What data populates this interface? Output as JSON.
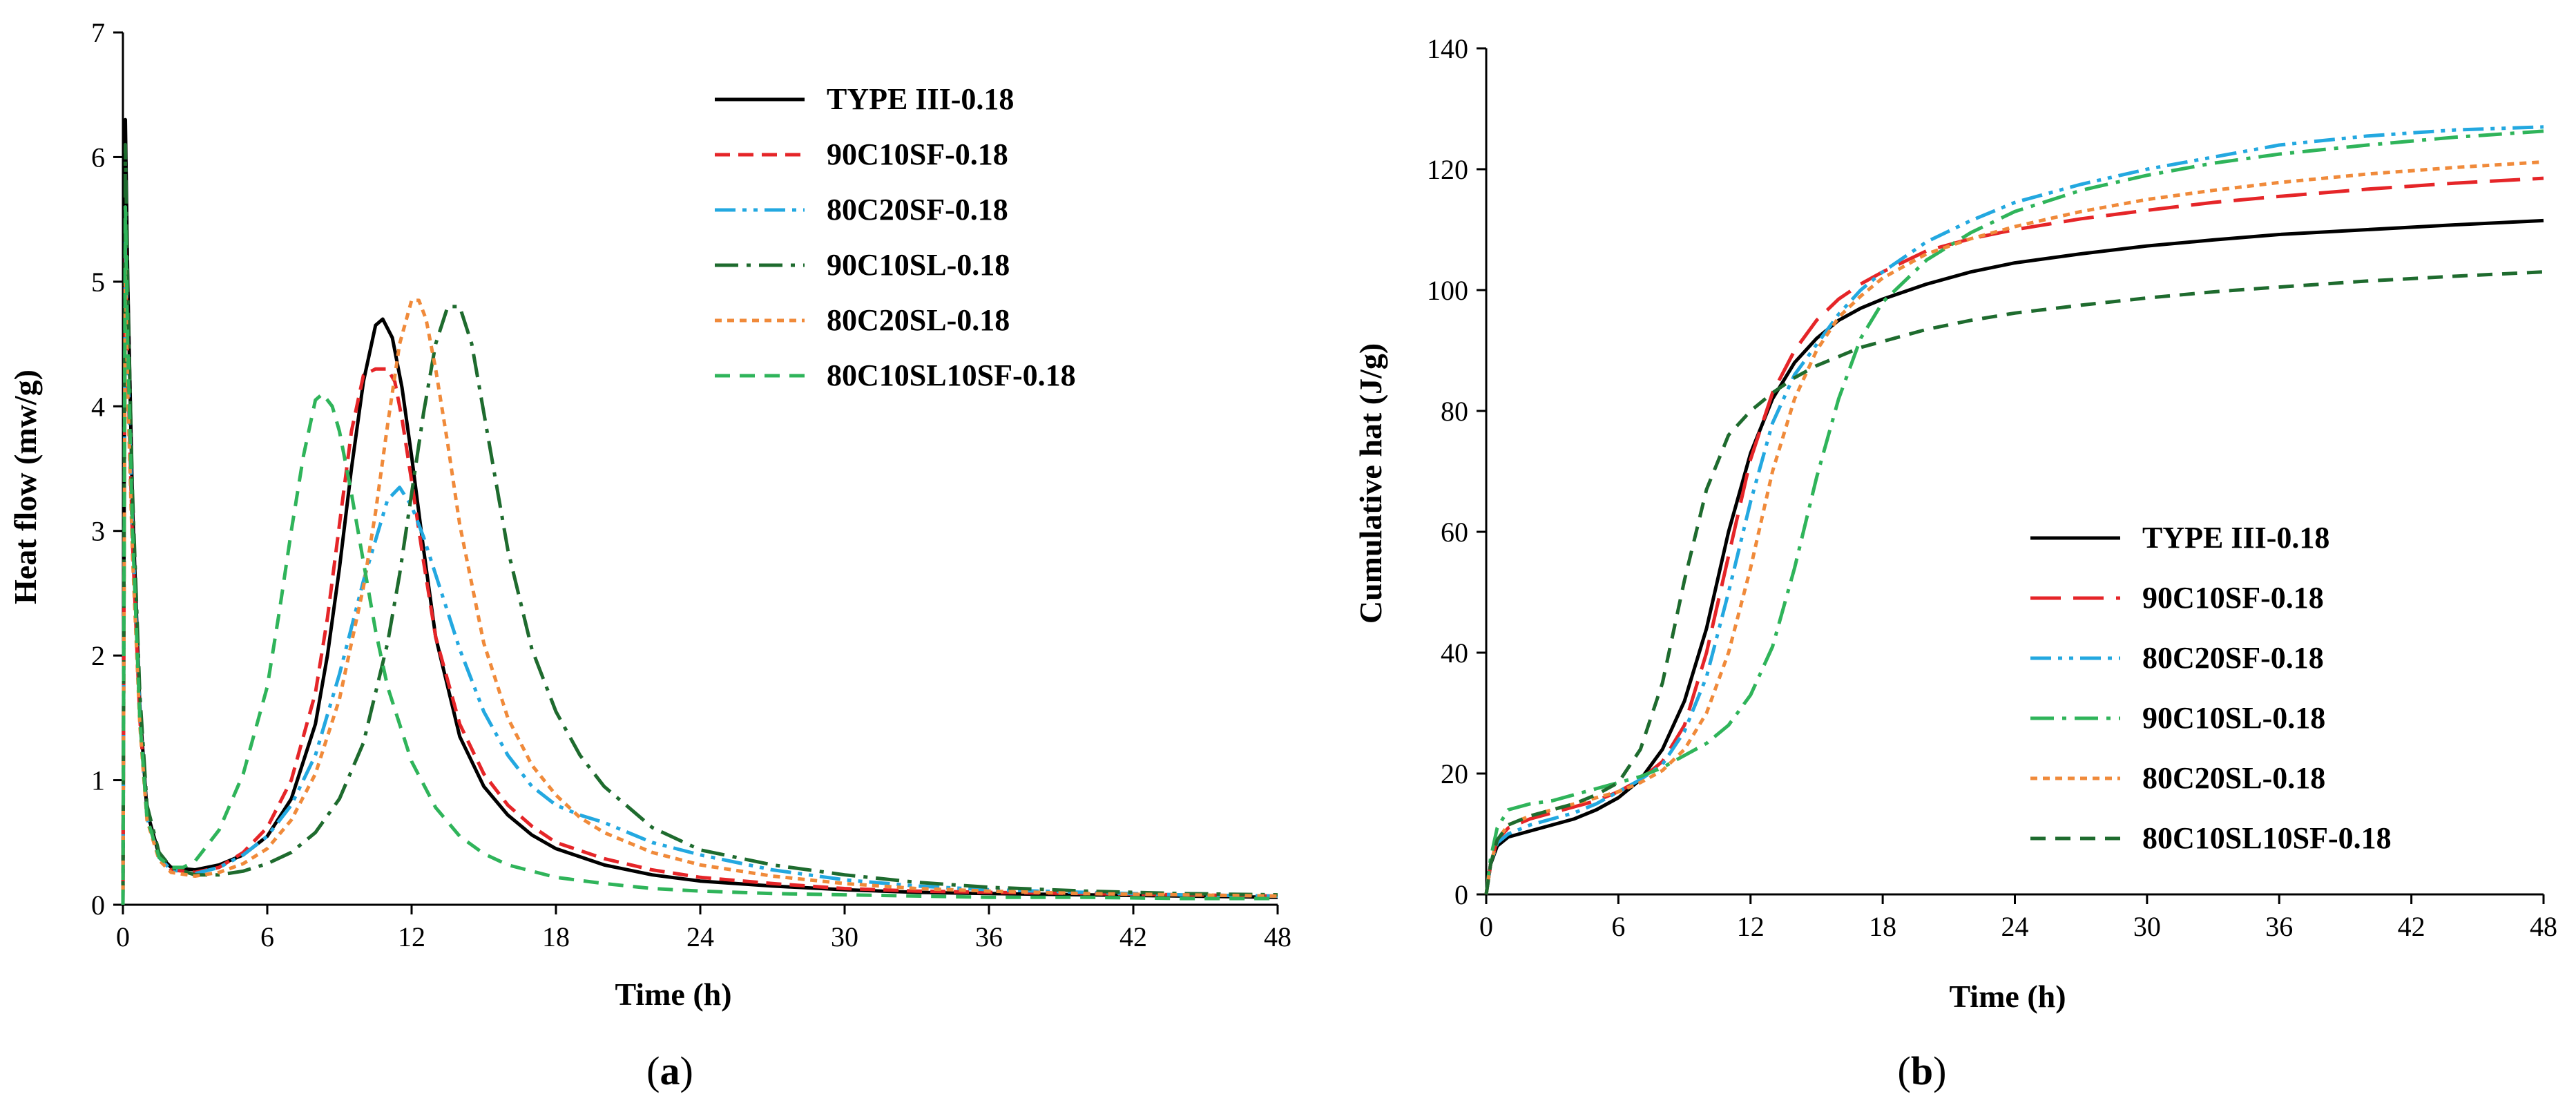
{
  "chart_data": [
    {
      "type": "line",
      "panel_label": {
        "open": "(",
        "letter": "a",
        "close": ")"
      },
      "xlabel": "Time (h)",
      "ylabel": "Heat flow (mw/g)",
      "xlim": [
        0,
        48
      ],
      "ylim": [
        0,
        7
      ],
      "xticks": [
        "0",
        "6",
        "12",
        "18",
        "24",
        "30",
        "36",
        "42",
        "48"
      ],
      "yticks": [
        "0",
        "1",
        "2",
        "3",
        "4",
        "5",
        "6",
        "7"
      ],
      "legend_position": "top-right",
      "series": [
        {
          "name": "TYPE III-0.18",
          "color": "#000000",
          "dash": "solid",
          "x": [
            0,
            0.1,
            0.2,
            0.4,
            0.7,
            1.0,
            1.5,
            2.0,
            3.0,
            4.0,
            5.0,
            6.0,
            7.0,
            8.0,
            8.5,
            9.0,
            9.5,
            10.0,
            10.5,
            10.8,
            11.2,
            11.6,
            12.0,
            12.5,
            13.0,
            14.0,
            15.0,
            16.0,
            17.0,
            18.0,
            20.0,
            22.0,
            24.0,
            27.0,
            30.0,
            33.0,
            36.0,
            40.0,
            44.0,
            48.0
          ],
          "y": [
            0,
            6.3,
            5.0,
            3.2,
            1.6,
            0.75,
            0.4,
            0.3,
            0.28,
            0.32,
            0.4,
            0.55,
            0.85,
            1.45,
            2.0,
            2.7,
            3.5,
            4.2,
            4.65,
            4.7,
            4.55,
            4.15,
            3.6,
            2.85,
            2.15,
            1.35,
            0.95,
            0.72,
            0.56,
            0.45,
            0.32,
            0.24,
            0.19,
            0.15,
            0.12,
            0.1,
            0.09,
            0.08,
            0.07,
            0.06
          ]
        },
        {
          "name": "90C10SF-0.18",
          "color": "#e52528",
          "dash": "short",
          "x": [
            0,
            0.1,
            0.2,
            0.4,
            0.7,
            1.0,
            1.5,
            2.0,
            3.0,
            4.0,
            5.0,
            6.0,
            7.0,
            8.0,
            8.5,
            9.0,
            9.5,
            10.0,
            10.5,
            11.0,
            11.3,
            11.6,
            12.0,
            12.5,
            13.0,
            14.0,
            15.0,
            16.0,
            17.0,
            18.0,
            20.0,
            22.0,
            24.0,
            27.0,
            30.0,
            33.0,
            36.0,
            40.0,
            44.0,
            48.0
          ],
          "y": [
            0,
            5.3,
            4.3,
            2.9,
            1.5,
            0.7,
            0.38,
            0.28,
            0.26,
            0.3,
            0.42,
            0.62,
            1.0,
            1.7,
            2.3,
            3.05,
            3.8,
            4.25,
            4.3,
            4.3,
            4.2,
            3.9,
            3.4,
            2.75,
            2.15,
            1.45,
            1.05,
            0.8,
            0.63,
            0.5,
            0.37,
            0.28,
            0.22,
            0.17,
            0.13,
            0.11,
            0.1,
            0.09,
            0.08,
            0.07
          ]
        },
        {
          "name": "80C20SF-0.18",
          "color": "#23a8e0",
          "dash": "dashdotdot",
          "x": [
            0,
            0.1,
            0.2,
            0.4,
            0.7,
            1.0,
            1.5,
            2.0,
            3.0,
            4.0,
            5.0,
            6.0,
            7.0,
            8.0,
            9.0,
            10.0,
            11.0,
            11.5,
            12.0,
            12.5,
            13.0,
            14.0,
            15.0,
            16.0,
            17.0,
            18.0,
            19.0,
            20.0,
            22.0,
            24.0,
            27.0,
            30.0,
            33.0,
            36.0,
            40.0,
            44.0,
            48.0
          ],
          "y": [
            0,
            5.4,
            4.4,
            3.0,
            1.55,
            0.7,
            0.38,
            0.28,
            0.25,
            0.3,
            0.4,
            0.55,
            0.8,
            1.2,
            1.85,
            2.6,
            3.25,
            3.35,
            3.2,
            2.95,
            2.65,
            2.05,
            1.55,
            1.2,
            0.95,
            0.8,
            0.72,
            0.66,
            0.5,
            0.4,
            0.28,
            0.2,
            0.15,
            0.12,
            0.1,
            0.08,
            0.07
          ]
        },
        {
          "name": "90C10SL-0.18",
          "color": "#1e6b2e",
          "dash": "dashdot",
          "x": [
            0,
            0.1,
            0.2,
            0.4,
            0.7,
            1.0,
            1.5,
            2.0,
            3.0,
            4.0,
            5.0,
            6.0,
            7.0,
            8.0,
            9.0,
            10.0,
            11.0,
            11.5,
            12.0,
            12.5,
            13.0,
            13.5,
            14.0,
            14.5,
            15.0,
            16.0,
            17.0,
            18.0,
            19.0,
            20.0,
            22.0,
            24.0,
            27.0,
            30.0,
            33.0,
            36.0,
            40.0,
            44.0,
            48.0
          ],
          "y": [
            0,
            6.1,
            4.9,
            3.3,
            1.7,
            0.8,
            0.42,
            0.3,
            0.24,
            0.24,
            0.27,
            0.33,
            0.42,
            0.58,
            0.85,
            1.3,
            2.1,
            2.65,
            3.3,
            3.95,
            4.5,
            4.8,
            4.8,
            4.5,
            3.95,
            2.85,
            2.05,
            1.55,
            1.2,
            0.95,
            0.62,
            0.44,
            0.32,
            0.24,
            0.18,
            0.14,
            0.11,
            0.09,
            0.08
          ]
        },
        {
          "name": "80C20SL-0.18",
          "color": "#f08a3a",
          "dash": "dotted",
          "x": [
            0,
            0.1,
            0.2,
            0.4,
            0.7,
            1.0,
            1.5,
            2.0,
            3.0,
            4.0,
            5.0,
            6.0,
            7.0,
            8.0,
            9.0,
            10.0,
            10.5,
            11.0,
            11.5,
            12.0,
            12.3,
            12.6,
            13.0,
            13.5,
            14.0,
            15.0,
            16.0,
            17.0,
            18.0,
            19.0,
            20.0,
            22.0,
            24.0,
            27.0,
            30.0,
            33.0,
            36.0,
            40.0,
            44.0,
            48.0
          ],
          "y": [
            0,
            5.1,
            4.1,
            2.8,
            1.45,
            0.68,
            0.36,
            0.26,
            0.23,
            0.26,
            0.33,
            0.45,
            0.68,
            1.05,
            1.65,
            2.55,
            3.15,
            3.85,
            4.5,
            4.85,
            4.85,
            4.7,
            4.3,
            3.7,
            3.05,
            2.1,
            1.5,
            1.12,
            0.88,
            0.7,
            0.58,
            0.42,
            0.32,
            0.23,
            0.17,
            0.13,
            0.11,
            0.09,
            0.08,
            0.07
          ]
        },
        {
          "name": "80C10SL10SF-0.18",
          "color": "#2fb45a",
          "dash": "dashed",
          "x": [
            0,
            0.1,
            0.2,
            0.4,
            0.7,
            1.0,
            1.5,
            2.0,
            2.5,
            3.0,
            4.0,
            5.0,
            6.0,
            6.5,
            7.0,
            7.5,
            8.0,
            8.3,
            8.7,
            9.0,
            9.5,
            10.0,
            10.5,
            11.0,
            12.0,
            13.0,
            14.0,
            15.0,
            16.0,
            18.0,
            20.0,
            22.0,
            24.0,
            27.0,
            30.0,
            33.0,
            36.0,
            40.0,
            44.0,
            48.0
          ],
          "y": [
            0,
            5.6,
            4.5,
            3.0,
            1.5,
            0.7,
            0.38,
            0.3,
            0.3,
            0.35,
            0.6,
            1.05,
            1.75,
            2.35,
            3.0,
            3.6,
            4.05,
            4.1,
            4.0,
            3.8,
            3.3,
            2.75,
            2.2,
            1.75,
            1.15,
            0.78,
            0.55,
            0.41,
            0.32,
            0.22,
            0.17,
            0.13,
            0.11,
            0.09,
            0.08,
            0.07,
            0.06,
            0.06,
            0.05,
            0.05
          ]
        }
      ]
    },
    {
      "type": "line",
      "panel_label": {
        "open": "(",
        "letter": "b",
        "close": ")"
      },
      "xlabel": "Time (h)",
      "ylabel": "Cumulative hat (J/g)",
      "xlim": [
        0,
        48
      ],
      "ylim": [
        0,
        140
      ],
      "xticks": [
        "0",
        "6",
        "12",
        "18",
        "24",
        "30",
        "36",
        "42",
        "48"
      ],
      "yticks": [
        "0",
        "20",
        "40",
        "60",
        "80",
        "100",
        "120",
        "140"
      ],
      "legend_position": "bottom-right",
      "series": [
        {
          "name": "TYPE III-0.18",
          "color": "#000000",
          "dash": "solid",
          "x": [
            0,
            0.2,
            0.5,
            1.0,
            2.0,
            3.0,
            4.0,
            5.0,
            6.0,
            7.0,
            8.0,
            9.0,
            10.0,
            11.0,
            12.0,
            13.0,
            14.0,
            15.0,
            16.0,
            17.0,
            18.0,
            20.0,
            22.0,
            24.0,
            27.0,
            30.0,
            33.0,
            36.0,
            40.0,
            44.0,
            48.0
          ],
          "y": [
            0,
            5,
            8,
            9.5,
            10.5,
            11.5,
            12.5,
            14,
            16,
            19,
            24,
            32,
            44,
            60,
            73,
            82,
            88,
            92,
            95,
            97,
            98.5,
            101,
            103,
            104.5,
            106,
            107.3,
            108.3,
            109.2,
            110,
            110.8,
            111.5
          ]
        },
        {
          "name": "90C10SF-0.18",
          "color": "#e52528",
          "dash": "longdash",
          "x": [
            0,
            0.2,
            0.5,
            1.0,
            2.0,
            3.0,
            4.0,
            5.0,
            6.0,
            7.0,
            8.0,
            9.0,
            10.0,
            11.0,
            12.0,
            13.0,
            14.0,
            15.0,
            16.0,
            17.0,
            18.0,
            20.0,
            22.0,
            24.0,
            27.0,
            30.0,
            33.0,
            36.0,
            40.0,
            44.0,
            48.0
          ],
          "y": [
            0,
            5,
            9,
            11,
            12.5,
            13.5,
            14.5,
            15.5,
            17,
            19,
            22,
            28,
            40,
            56,
            72,
            83,
            90,
            95,
            98.5,
            101,
            103,
            106.5,
            108.5,
            110,
            111.8,
            113.2,
            114.5,
            115.5,
            116.7,
            117.7,
            118.5
          ]
        },
        {
          "name": "80C20SF-0.18",
          "color": "#23a8e0",
          "dash": "dashdotdot",
          "x": [
            0,
            0.2,
            0.5,
            1.0,
            2.0,
            3.0,
            4.0,
            5.0,
            6.0,
            7.0,
            8.0,
            9.0,
            10.0,
            11.0,
            12.0,
            13.0,
            14.0,
            15.0,
            16.0,
            17.0,
            18.0,
            20.0,
            22.0,
            24.0,
            27.0,
            30.0,
            33.0,
            36.0,
            40.0,
            44.0,
            48.0
          ],
          "y": [
            0,
            5,
            8.5,
            10,
            11.5,
            12.5,
            13.5,
            15,
            17,
            19,
            21.5,
            27,
            36,
            50,
            65,
            78,
            86,
            91,
            96,
            100,
            103,
            108,
            111.5,
            114.5,
            117.5,
            120,
            122,
            124,
            125.5,
            126.5,
            127
          ]
        },
        {
          "name": "90C10SL-0.18",
          "color": "#2fb45a",
          "dash": "dashdot",
          "x": [
            0,
            0.2,
            0.5,
            1.0,
            2.0,
            3.0,
            4.0,
            5.0,
            6.0,
            7.0,
            8.0,
            9.0,
            10.0,
            11.0,
            12.0,
            13.0,
            14.0,
            15.0,
            16.0,
            17.0,
            18.0,
            20.0,
            22.0,
            24.0,
            27.0,
            30.0,
            33.0,
            36.0,
            40.0,
            44.0,
            48.0
          ],
          "y": [
            0,
            6,
            11,
            14,
            15,
            15.5,
            16.5,
            17.5,
            18.5,
            19.5,
            21,
            23,
            25,
            28,
            33,
            41,
            54,
            69,
            82,
            92,
            98,
            105,
            109.5,
            113,
            116.5,
            119,
            121,
            122.5,
            124,
            125.3,
            126.3
          ]
        },
        {
          "name": "80C20SL-0.18",
          "color": "#f08a3a",
          "dash": "dotted",
          "x": [
            0,
            0.2,
            0.5,
            1.0,
            2.0,
            3.0,
            4.0,
            5.0,
            6.0,
            7.0,
            8.0,
            9.0,
            10.0,
            11.0,
            12.0,
            13.0,
            14.0,
            15.0,
            16.0,
            17.0,
            18.0,
            20.0,
            22.0,
            24.0,
            27.0,
            30.0,
            33.0,
            36.0,
            40.0,
            44.0,
            48.0
          ],
          "y": [
            0,
            5,
            9,
            11.5,
            13,
            14,
            15,
            16,
            17,
            18.5,
            20.5,
            24,
            30,
            40,
            54,
            70,
            82,
            90,
            95.5,
            99,
            102,
            106,
            108.5,
            110.5,
            113,
            115,
            116.5,
            117.8,
            119.2,
            120.3,
            121.2
          ]
        },
        {
          "name": "80C10SL10SF-0.18",
          "color": "#1e6b2e",
          "dash": "dashed",
          "x": [
            0,
            0.2,
            0.5,
            1.0,
            2.0,
            3.0,
            4.0,
            5.0,
            6.0,
            7.0,
            8.0,
            9.0,
            10.0,
            11.0,
            12.0,
            13.0,
            14.0,
            15.0,
            16.0,
            17.0,
            18.0,
            20.0,
            22.0,
            24.0,
            27.0,
            30.0,
            33.0,
            36.0,
            40.0,
            44.0,
            48.0
          ],
          "y": [
            0,
            5,
            9,
            11.5,
            13,
            14,
            15,
            16.5,
            18.5,
            24,
            35,
            52,
            67,
            76,
            80,
            83,
            85.5,
            87.5,
            89,
            90.5,
            91.5,
            93.5,
            95,
            96.2,
            97.5,
            98.7,
            99.7,
            100.5,
            101.5,
            102.3,
            103
          ]
        }
      ]
    }
  ]
}
